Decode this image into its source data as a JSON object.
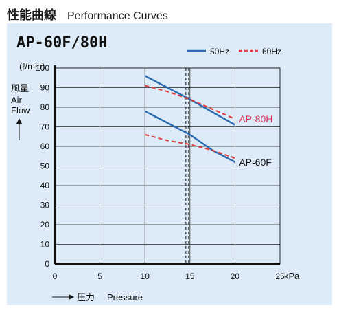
{
  "page": {
    "title_jp": "性能曲線",
    "title_en": "Performance Curves"
  },
  "chart_data": {
    "type": "line",
    "title": "AP-60F/80H",
    "y_unit": "(ℓ/min)",
    "ylabel_jp": "風量",
    "ylabel_en": [
      "Air",
      "Flow"
    ],
    "xlabel_jp": "圧力",
    "xlabel_en": "Pressure",
    "x_unit": "kPa",
    "xlim": [
      0,
      25
    ],
    "ylim": [
      0,
      100
    ],
    "x_ticks": [
      0,
      5,
      10,
      15,
      20,
      25
    ],
    "y_ticks": [
      0,
      10,
      20,
      30,
      40,
      50,
      60,
      70,
      80,
      90,
      100
    ],
    "grid": true,
    "legend_position": "top-right",
    "legend": [
      {
        "label": "50Hz",
        "color": "#2b6cb0",
        "style": "solid"
      },
      {
        "label": "60Hz",
        "color": "#e03a3a",
        "style": "dashed"
      }
    ],
    "rated_pressure_marker": 14.7,
    "series": [
      {
        "model": "AP-80H",
        "freq": "50Hz",
        "color": "#2b6cb0",
        "style": "solid",
        "points": [
          [
            10,
            96
          ],
          [
            15,
            84
          ],
          [
            20,
            71
          ]
        ]
      },
      {
        "model": "AP-80H",
        "freq": "60Hz",
        "color": "#e03a3a",
        "style": "dashed",
        "points": [
          [
            10,
            91
          ],
          [
            12.5,
            88
          ],
          [
            15,
            84
          ],
          [
            17.5,
            79
          ],
          [
            20,
            74
          ]
        ]
      },
      {
        "model": "AP-60F",
        "freq": "50Hz",
        "color": "#2b6cb0",
        "style": "solid",
        "points": [
          [
            10,
            78
          ],
          [
            15,
            66
          ],
          [
            17.5,
            58
          ],
          [
            20,
            52
          ]
        ]
      },
      {
        "model": "AP-60F",
        "freq": "60Hz",
        "color": "#e03a3a",
        "style": "dashed",
        "points": [
          [
            10,
            66
          ],
          [
            12.5,
            63
          ],
          [
            15,
            61
          ],
          [
            17.5,
            58
          ],
          [
            20,
            54
          ]
        ]
      }
    ],
    "annotations": [
      {
        "text": "AP-80H",
        "color": "#e0305a",
        "x": 20.3,
        "y": 74
      },
      {
        "text": "AP-60F",
        "color": "#111111",
        "x": 20.3,
        "y": 52
      }
    ]
  }
}
